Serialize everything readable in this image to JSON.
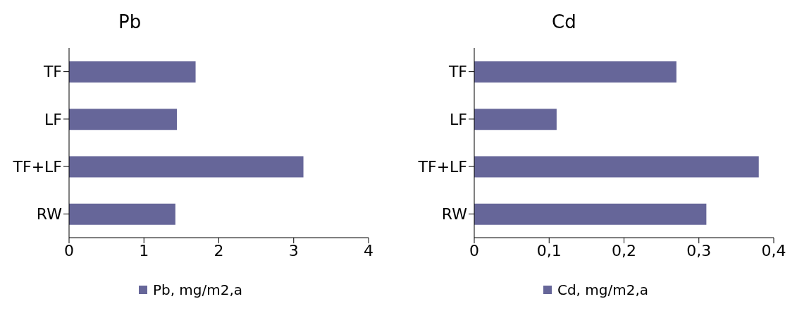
{
  "chart_data": [
    {
      "type": "bar",
      "title": "Pb",
      "orientation": "horizontal",
      "categories": [
        "TF",
        "LF",
        "TF+LF",
        "RW"
      ],
      "series": [
        {
          "name": "Pb, mg/m2,a",
          "color": "#666699",
          "values": [
            1.69,
            1.44,
            3.13,
            1.42
          ]
        }
      ],
      "xlim": [
        0,
        4
      ],
      "xticks": [
        0,
        1,
        2,
        3,
        4
      ],
      "grid": false,
      "legend": "bottom"
    },
    {
      "type": "bar",
      "title": "Cd",
      "orientation": "horizontal",
      "categories": [
        "TF",
        "LF",
        "TF+LF",
        "RW"
      ],
      "series": [
        {
          "name": "Cd, mg/m2,a",
          "color": "#666699",
          "values": [
            0.27,
            0.11,
            0.38,
            0.31
          ]
        }
      ],
      "xlim": [
        0,
        0.4
      ],
      "xticks": [
        0,
        {
          "value": 0.1,
          "label": "0,1"
        },
        {
          "value": 0.2,
          "label": "0,2"
        },
        {
          "value": 0.3,
          "label": "0,3"
        },
        {
          "value": 0.4,
          "label": "0,4"
        }
      ],
      "grid": false,
      "legend": "bottom"
    }
  ]
}
